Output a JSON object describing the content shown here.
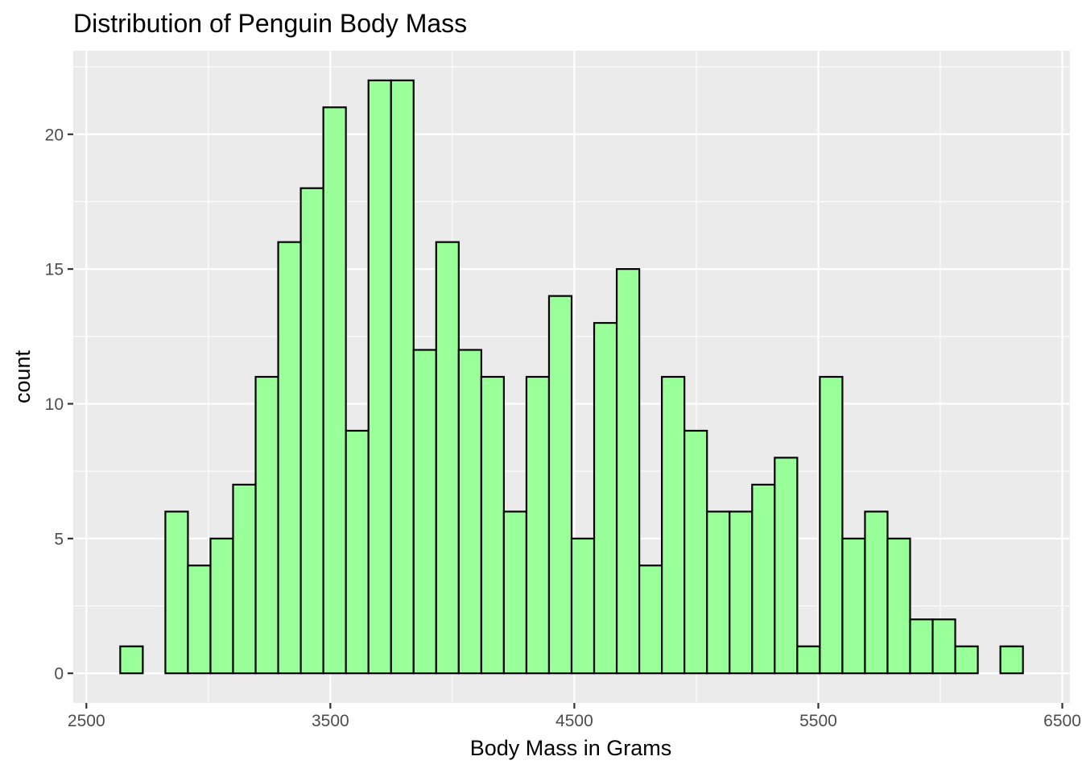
{
  "chart_data": {
    "type": "bar",
    "subtype": "histogram",
    "title": "Distribution of Penguin Body Mass",
    "xlabel": "Body Mass in Grams",
    "ylabel": "count",
    "binwidth": 92.5,
    "bin_centers": [
      2685,
      2777.5,
      2870,
      2962.5,
      3055,
      3147.5,
      3240,
      3332.5,
      3425,
      3517.5,
      3610,
      3702.5,
      3795,
      3887.5,
      3980,
      4072.5,
      4165,
      4257.5,
      4350,
      4442.5,
      4535,
      4627.5,
      4720,
      4812.5,
      4905,
      4997.5,
      5090,
      5182.5,
      5275,
      5367.5,
      5460,
      5552.5,
      5645,
      5737.5,
      5830,
      5922.5,
      6015,
      6107.5,
      6200,
      6292.5
    ],
    "values": [
      1,
      0,
      6,
      4,
      5,
      7,
      11,
      16,
      18,
      21,
      9,
      22,
      22,
      12,
      16,
      12,
      11,
      6,
      11,
      14,
      5,
      13,
      15,
      4,
      11,
      9,
      6,
      6,
      7,
      8,
      1,
      11,
      5,
      6,
      5,
      2,
      2,
      1,
      0,
      1
    ],
    "xlim": [
      2446.25,
      6531.25
    ],
    "ylim": [
      -1.1,
      23.1
    ],
    "x_ticks": [
      2500,
      3500,
      4500,
      5500,
      6500
    ],
    "x_tick_labels": [
      "2500",
      "3500",
      "4500",
      "5500",
      "6500"
    ],
    "y_ticks": [
      0,
      5,
      10,
      15,
      20
    ],
    "y_tick_labels": [
      "0",
      "5",
      "10",
      "15",
      "20"
    ],
    "bar_fill": "#99ff99",
    "bar_outline": "#000000",
    "panel_background": "#ebebeb",
    "grid_color": "#ffffff",
    "tick_color": "#333333"
  }
}
